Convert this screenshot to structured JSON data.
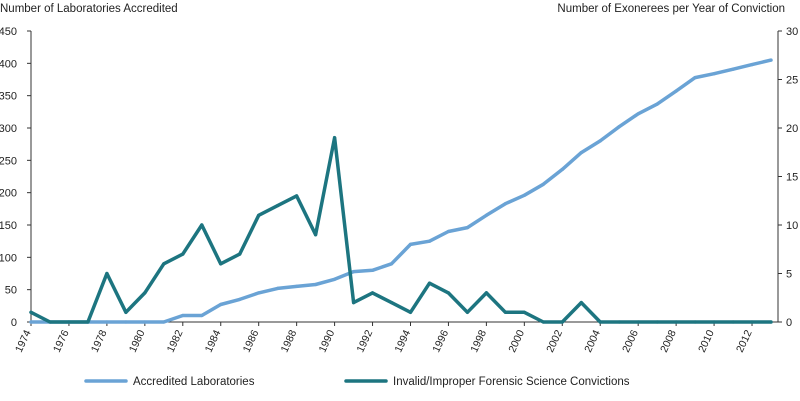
{
  "chart_data": {
    "type": "line",
    "title": "",
    "xlabel": "",
    "y_left_label": "Number of Laboratories Accredited",
    "y_right_label": "Number of Exonerees per Year of Conviction",
    "y_left_lim": [
      0,
      450
    ],
    "y_left_ticks": [
      0,
      50,
      100,
      150,
      200,
      250,
      300,
      350,
      400,
      450
    ],
    "y_right_lim": [
      0,
      30
    ],
    "y_right_ticks": [
      0,
      5,
      10,
      15,
      20,
      25,
      30
    ],
    "x_lim": [
      1974,
      2013
    ],
    "x_ticks": [
      1974,
      1976,
      1978,
      1980,
      1982,
      1984,
      1986,
      1988,
      1990,
      1992,
      1994,
      1996,
      1998,
      2000,
      2002,
      2004,
      2006,
      2008,
      2010,
      2012
    ],
    "grid": false,
    "legend_position": "bottom",
    "series": [
      {
        "name": "Accredited Laboratories",
        "axis": "left",
        "color": "#6aa3d5",
        "x": [
          1974,
          1975,
          1976,
          1977,
          1978,
          1979,
          1980,
          1981,
          1982,
          1983,
          1984,
          1985,
          1986,
          1987,
          1988,
          1989,
          1990,
          1991,
          1992,
          1993,
          1994,
          1995,
          1996,
          1997,
          1998,
          1999,
          2000,
          2001,
          2002,
          2003,
          2004,
          2005,
          2006,
          2007,
          2008,
          2009,
          2010,
          2011,
          2012,
          2013
        ],
        "values": [
          0,
          0,
          0,
          0,
          0,
          0,
          0,
          0,
          10,
          10,
          27,
          35,
          45,
          52,
          55,
          58,
          66,
          78,
          80,
          90,
          120,
          125,
          140,
          146,
          165,
          183,
          196,
          213,
          236,
          262,
          280,
          302,
          322,
          337,
          357,
          378,
          384,
          391,
          398,
          405
        ]
      },
      {
        "name": "Invalid/Improper Forensic Science Convictions",
        "axis": "right",
        "color": "#1d7580",
        "x": [
          1974,
          1975,
          1976,
          1977,
          1978,
          1979,
          1980,
          1981,
          1982,
          1983,
          1984,
          1985,
          1986,
          1987,
          1988,
          1989,
          1990,
          1991,
          1992,
          1993,
          1994,
          1995,
          1996,
          1997,
          1998,
          1999,
          2000,
          2001,
          2002,
          2003,
          2004,
          2005,
          2006,
          2007,
          2008,
          2009,
          2010,
          2011,
          2012,
          2013
        ],
        "values": [
          1,
          0,
          0,
          0,
          5,
          1,
          3,
          6,
          7,
          10,
          6,
          7,
          11,
          12,
          13,
          9,
          19,
          2,
          3,
          2,
          1,
          4,
          3,
          1,
          3,
          1,
          1,
          0,
          0,
          2,
          0,
          0,
          0,
          0,
          0,
          0,
          0,
          0,
          0,
          0
        ]
      }
    ]
  }
}
